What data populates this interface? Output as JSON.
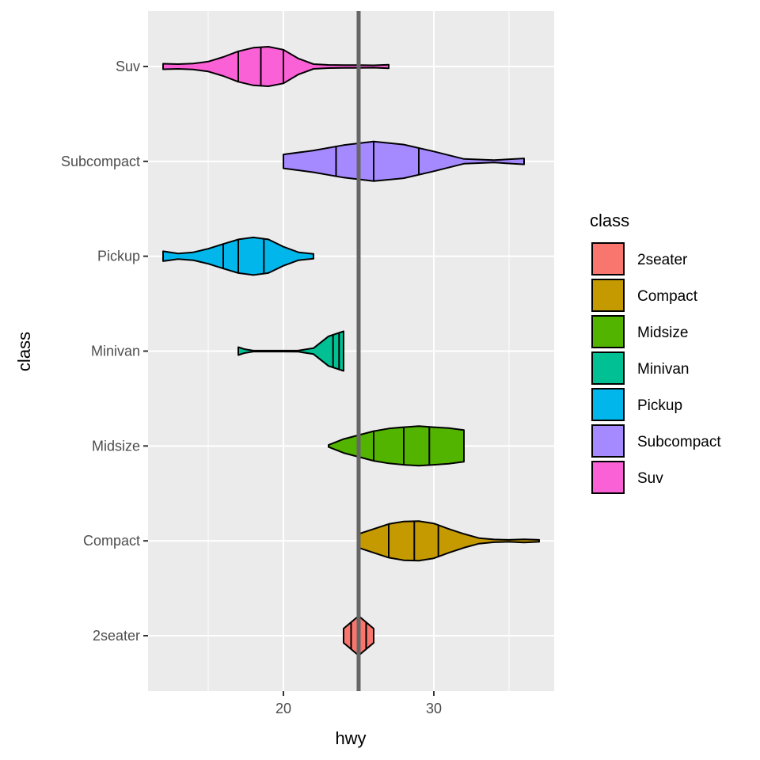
{
  "chart_data": {
    "type": "violin",
    "title": "",
    "xlabel": "hwy",
    "ylabel": "class",
    "xlim": [
      11,
      38
    ],
    "x_ticks": [
      20,
      30
    ],
    "x_tick_labels": [
      "20",
      "30"
    ],
    "grid": true,
    "background": "#EBEBEB",
    "reference_line": {
      "x": 25,
      "color": "#666666"
    },
    "categories": [
      "2seater",
      "Compact",
      "Midsize",
      "Minivan",
      "Pickup",
      "Subcompact",
      "Suv"
    ],
    "quantile_lines": [
      0.25,
      0.5,
      0.75
    ],
    "series": [
      {
        "name": "2seater",
        "color": "#F8766D",
        "profile": [
          [
            24,
            0.36
          ],
          [
            25,
            1
          ],
          [
            26,
            0.36
          ]
        ],
        "quantiles": [
          24.5,
          25,
          25.5
        ]
      },
      {
        "name": "Compact",
        "color": "#C49A00",
        "profile": [
          [
            25,
            0.35
          ],
          [
            26,
            0.6
          ],
          [
            27,
            0.85
          ],
          [
            28,
            0.98
          ],
          [
            29,
            1
          ],
          [
            30,
            0.88
          ],
          [
            31,
            0.6
          ],
          [
            32,
            0.35
          ],
          [
            33,
            0.14
          ],
          [
            34,
            0.07
          ],
          [
            35,
            0.05
          ],
          [
            36,
            0.08
          ],
          [
            37,
            0.05
          ]
        ],
        "quantiles": [
          27,
          28.7,
          30.3
        ]
      },
      {
        "name": "Midsize",
        "color": "#53B400",
        "profile": [
          [
            23,
            0.05
          ],
          [
            24,
            0.35
          ],
          [
            25,
            0.55
          ],
          [
            26,
            0.75
          ],
          [
            27,
            0.88
          ],
          [
            28,
            0.95
          ],
          [
            29,
            1
          ],
          [
            30,
            0.95
          ],
          [
            31,
            0.9
          ],
          [
            32,
            0.8
          ]
        ],
        "quantiles": [
          26,
          28,
          29.7
        ]
      },
      {
        "name": "Minivan",
        "color": "#00C094",
        "profile": [
          [
            17,
            0.2
          ],
          [
            17.4,
            0.1
          ],
          [
            18,
            0.01
          ],
          [
            20,
            0.01
          ],
          [
            21,
            0.03
          ],
          [
            22,
            0.15
          ],
          [
            23,
            0.75
          ],
          [
            24,
            1
          ]
        ],
        "quantiles": [
          23.3,
          23.7,
          24
        ]
      },
      {
        "name": "Pickup",
        "color": "#00B6EB",
        "profile": [
          [
            12,
            0.25
          ],
          [
            13,
            0.14
          ],
          [
            14,
            0.2
          ],
          [
            15,
            0.38
          ],
          [
            16,
            0.62
          ],
          [
            17,
            0.85
          ],
          [
            18,
            0.95
          ],
          [
            19,
            0.85
          ],
          [
            20,
            0.48
          ],
          [
            21,
            0.2
          ],
          [
            22,
            0.12
          ]
        ],
        "quantiles": [
          16,
          17,
          18.7
        ]
      },
      {
        "name": "Subcompact",
        "color": "#A58AFF",
        "profile": [
          [
            20,
            0.35
          ],
          [
            22,
            0.55
          ],
          [
            24,
            0.82
          ],
          [
            26,
            1
          ],
          [
            28,
            0.85
          ],
          [
            30,
            0.5
          ],
          [
            32,
            0.12
          ],
          [
            34,
            0.06
          ],
          [
            36,
            0.15
          ]
        ],
        "quantiles": [
          23.5,
          26,
          29
        ]
      },
      {
        "name": "Suv",
        "color": "#FB61D7",
        "profile": [
          [
            12,
            0.14
          ],
          [
            13,
            0.12
          ],
          [
            14,
            0.15
          ],
          [
            15,
            0.25
          ],
          [
            16,
            0.48
          ],
          [
            17,
            0.77
          ],
          [
            18,
            0.95
          ],
          [
            19,
            1
          ],
          [
            20,
            0.85
          ],
          [
            21,
            0.4
          ],
          [
            22,
            0.12
          ],
          [
            23,
            0.08
          ],
          [
            24,
            0.07
          ],
          [
            25,
            0.07
          ],
          [
            26,
            0.06
          ],
          [
            27,
            0.09
          ]
        ],
        "quantiles": [
          17,
          18.5,
          20
        ]
      }
    ],
    "legend": {
      "title": "class",
      "position": "right",
      "labels": [
        "2seater",
        "Compact",
        "Midsize",
        "Minivan",
        "Pickup",
        "Subcompact",
        "Suv"
      ]
    }
  }
}
